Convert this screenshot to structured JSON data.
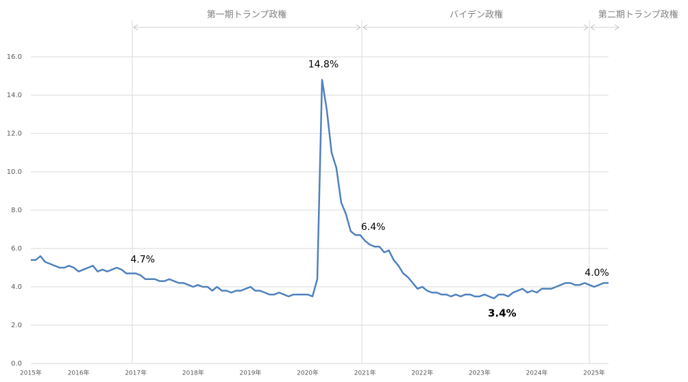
{
  "chart_data": {
    "type": "line",
    "annotations": [
      "第一期トランプ政権",
      "バイデン政権",
      "第二期トランプ政権"
    ],
    "categories": [
      "2015年",
      null,
      null,
      null,
      null,
      null,
      null,
      null,
      null,
      null,
      "2016年",
      null,
      null,
      null,
      null,
      null,
      null,
      null,
      null,
      null,
      null,
      null,
      "2017年",
      null,
      null,
      null,
      null,
      null,
      null,
      null,
      null,
      null,
      null,
      null,
      "2018年",
      null,
      null,
      null,
      null,
      null,
      null,
      null,
      null,
      null,
      null,
      null,
      "2019年",
      null,
      null,
      null,
      null,
      null,
      null,
      null,
      null,
      null,
      null,
      null,
      "2020年",
      null,
      null,
      null,
      null,
      null,
      null,
      null,
      null,
      null,
      null,
      null,
      "2021年",
      null,
      null,
      null,
      null,
      null,
      null,
      null,
      null,
      null,
      null,
      null,
      "2022年",
      null,
      null,
      null,
      null,
      null,
      null,
      null,
      null,
      null,
      null,
      null,
      "2023年",
      null,
      null,
      null,
      null,
      null,
      null,
      null,
      null,
      null,
      null,
      null,
      "2024年",
      null,
      null,
      null,
      null,
      null,
      null,
      null,
      null,
      null,
      null,
      null,
      "2025年",
      null,
      null,
      null
    ],
    "series": [
      {
        "color": "#4f81bd",
        "values": [
          5.4,
          5.4,
          5.6,
          5.3,
          5.2,
          5.1,
          5.0,
          5.0,
          5.1,
          5.0,
          4.8,
          4.9,
          5.0,
          5.1,
          4.8,
          4.9,
          4.8,
          4.9,
          5.0,
          4.9,
          4.7,
          4.7,
          4.7,
          4.6,
          4.4,
          4.4,
          4.4,
          4.3,
          4.3,
          4.4,
          4.3,
          4.2,
          4.2,
          4.1,
          4.0,
          4.1,
          4.0,
          4.0,
          3.8,
          4.0,
          3.8,
          3.8,
          3.7,
          3.8,
          3.8,
          3.9,
          4.0,
          3.8,
          3.8,
          3.7,
          3.6,
          3.6,
          3.7,
          3.6,
          3.5,
          3.6,
          3.6,
          3.6,
          3.6,
          3.5,
          4.4,
          14.8,
          13.2,
          11.0,
          10.2,
          8.4,
          7.8,
          6.9,
          6.7,
          6.7,
          6.4,
          6.2,
          6.1,
          6.1,
          5.8,
          5.9,
          5.4,
          5.1,
          4.7,
          4.5,
          4.2,
          3.9,
          4.0,
          3.8,
          3.7,
          3.7,
          3.6,
          3.6,
          3.5,
          3.6,
          3.5,
          3.6,
          3.6,
          3.5,
          3.5,
          3.6,
          3.5,
          3.4,
          3.6,
          3.6,
          3.5,
          3.7,
          3.8,
          3.9,
          3.7,
          3.8,
          3.7,
          3.9,
          3.9,
          3.9,
          4.0,
          4.1,
          4.2,
          4.2,
          4.1,
          4.1,
          4.2,
          4.1,
          4.0,
          4.1,
          4.2,
          4.2
        ],
        "value_labels": [
          null,
          null,
          null,
          null,
          null,
          null,
          null,
          null,
          null,
          null,
          null,
          null,
          null,
          null,
          null,
          null,
          null,
          null,
          null,
          null,
          null,
          null,
          "4.7%",
          null,
          null,
          null,
          null,
          null,
          null,
          null,
          null,
          null,
          null,
          null,
          null,
          null,
          null,
          null,
          null,
          null,
          null,
          null,
          null,
          null,
          null,
          null,
          null,
          null,
          null,
          null,
          null,
          null,
          null,
          null,
          null,
          null,
          null,
          null,
          null,
          null,
          null,
          "14.8%",
          null,
          null,
          null,
          null,
          null,
          null,
          null,
          null,
          "6.4%",
          null,
          null,
          null,
          null,
          null,
          null,
          null,
          null,
          null,
          null,
          null,
          null,
          null,
          null,
          null,
          null,
          null,
          null,
          null,
          null,
          null,
          null,
          null,
          null,
          null,
          null,
          "3.4%",
          null,
          null,
          null,
          null,
          null,
          null,
          null,
          null,
          null,
          null,
          null,
          null,
          null,
          null,
          null,
          null,
          null,
          null,
          null,
          null,
          "4.0%",
          null,
          null,
          null
        ]
      }
    ],
    "ylim": [
      0,
      16
    ],
    "yticks": [
      {
        "value": 0,
        "label": "0.0"
      },
      {
        "value": 2,
        "label": "2.0"
      },
      {
        "value": 4,
        "label": "4.0"
      },
      {
        "value": 6,
        "label": "6.0"
      },
      {
        "value": 8,
        "label": "8.0"
      },
      {
        "value": 10,
        "label": "10.0"
      },
      {
        "value": 12,
        "label": "12.0"
      },
      {
        "value": 14,
        "label": "14.0"
      },
      {
        "value": 16,
        "label": "16.0"
      }
    ],
    "grid": true
  }
}
